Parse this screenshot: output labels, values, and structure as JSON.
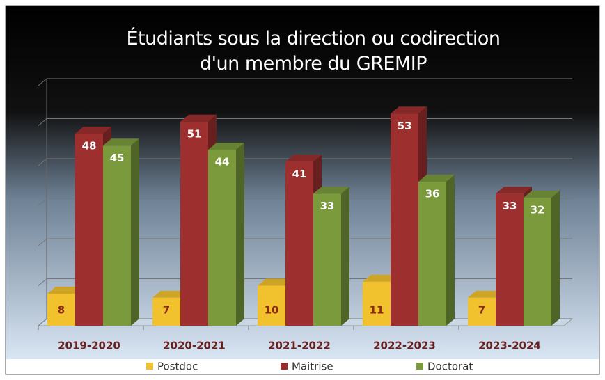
{
  "chart_data": {
    "type": "bar3d",
    "title": "Étudiants sous la direction ou codirection d'un membre du GREMIP",
    "categories": [
      "2019-2020",
      "2020-2021",
      "2021-2022",
      "2022-2023",
      "2023-2024"
    ],
    "series": [
      {
        "name": "Postdoc",
        "color": "#f2c12e",
        "values": [
          8,
          7,
          10,
          11,
          7
        ]
      },
      {
        "name": "Maitrise",
        "color": "#9e2f2f",
        "values": [
          48,
          51,
          41,
          53,
          33
        ]
      },
      {
        "name": "Doctorat",
        "color": "#7a9a3c",
        "values": [
          45,
          44,
          33,
          36,
          32
        ]
      }
    ],
    "ylim": [
      0,
      60
    ],
    "yticks": [
      0,
      10,
      20,
      30,
      40,
      50,
      60
    ],
    "grid": true,
    "legend": "bottom"
  }
}
